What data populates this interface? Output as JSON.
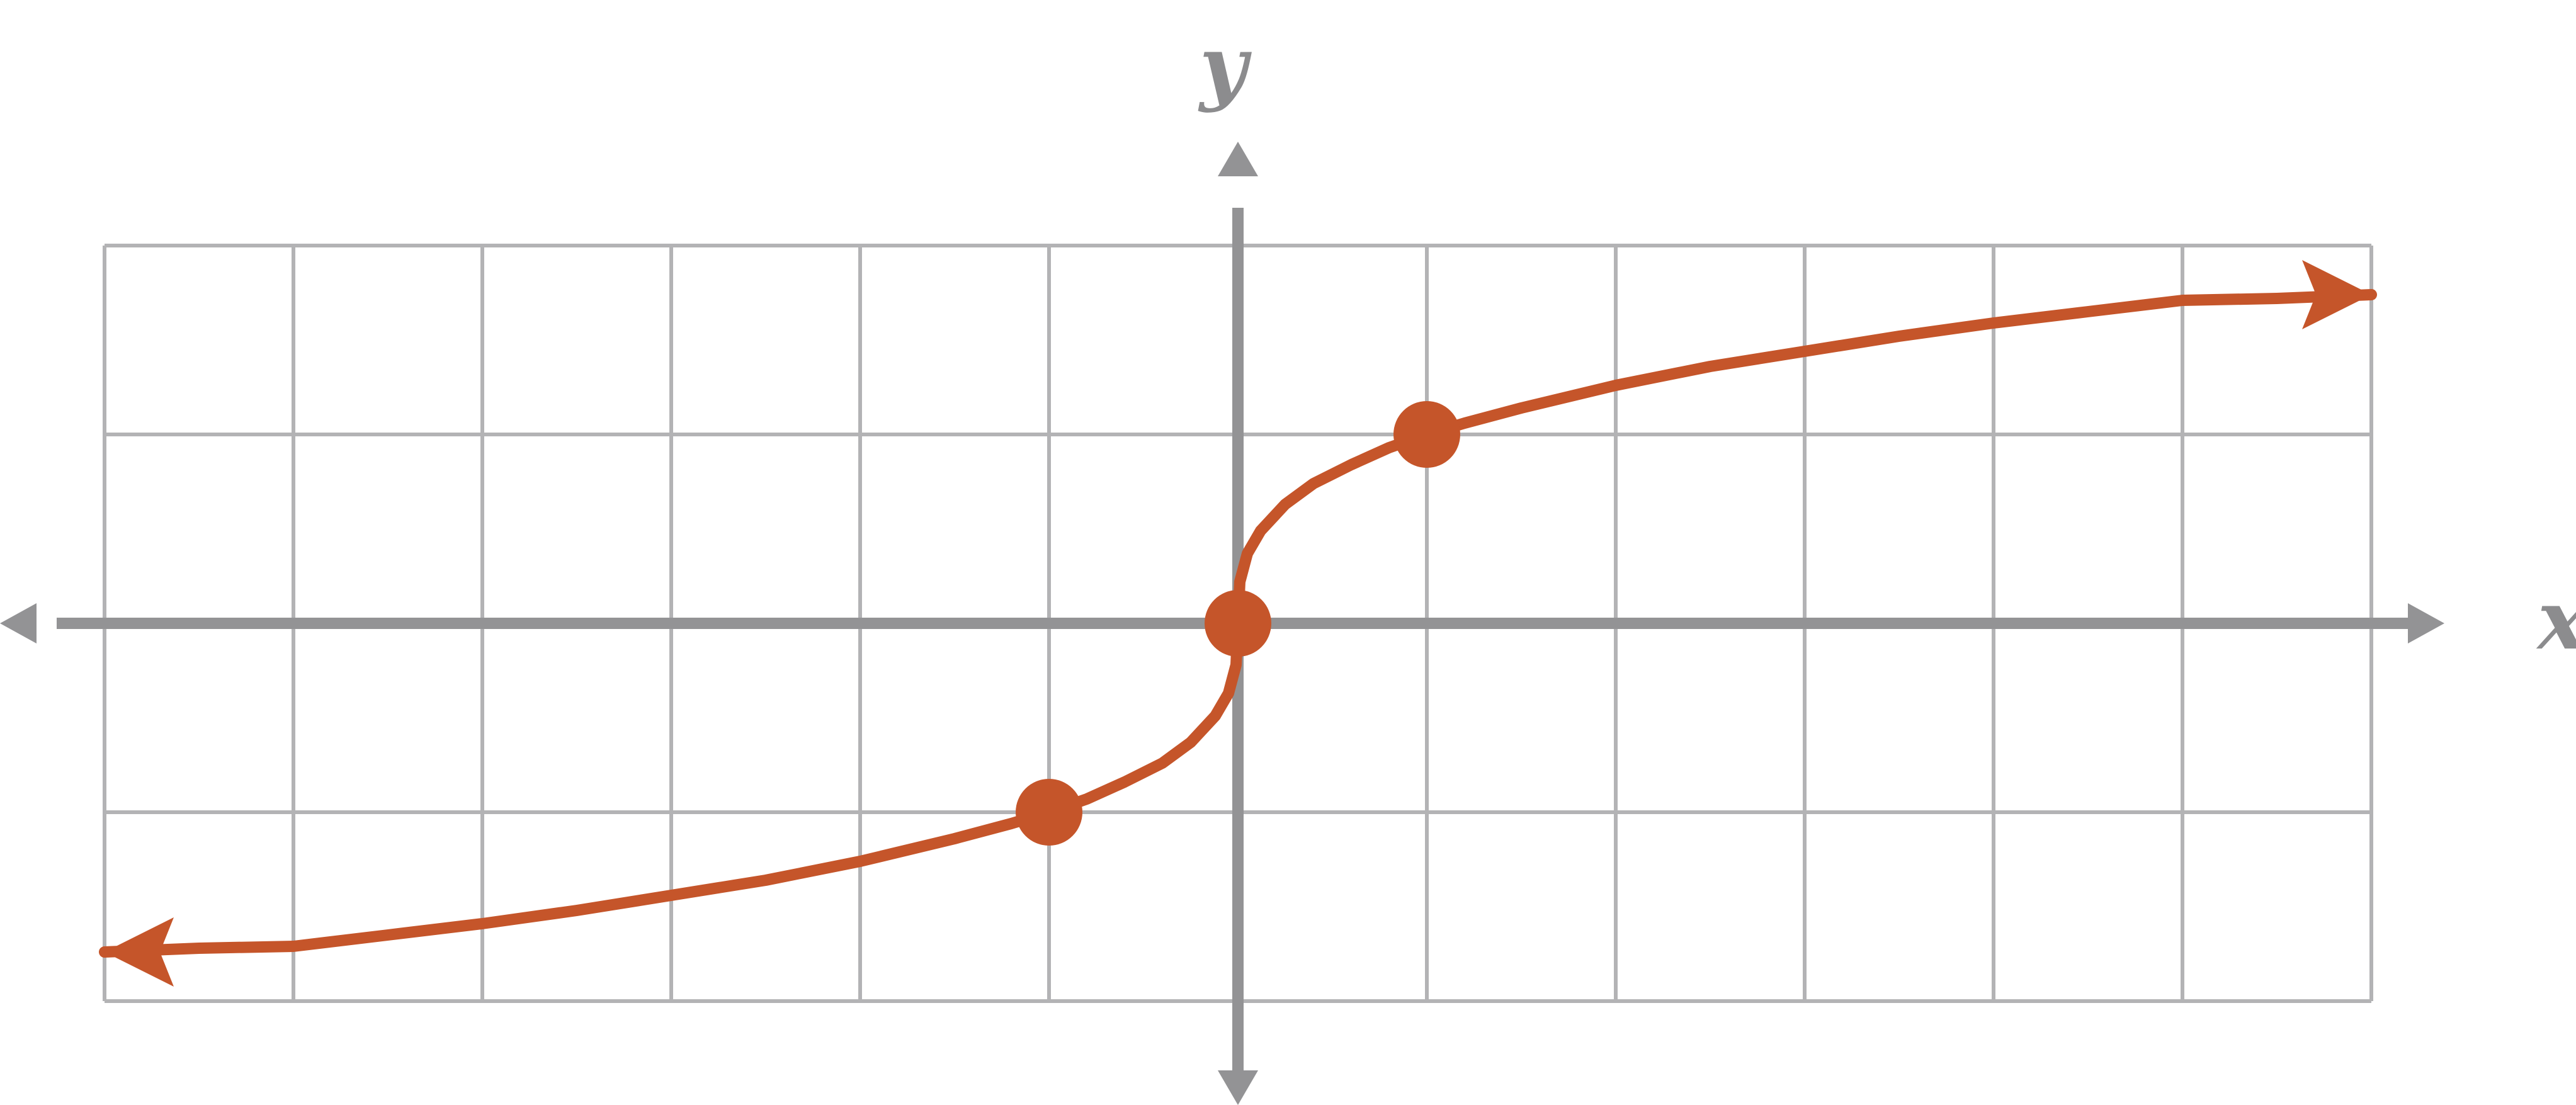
{
  "chart_data": {
    "type": "line",
    "title": "",
    "xlabel": "x",
    "ylabel": "y",
    "xlim": [
      -6,
      6
    ],
    "ylim": [
      -2,
      2
    ],
    "grid": true,
    "series": [
      {
        "function": "cbrt(x)",
        "x": [
          -6.0,
          -5.5,
          -5.0,
          -4.5,
          -4.0,
          -3.5,
          -3.0,
          -2.5,
          -2.0,
          -1.5,
          -1.2,
          -1.0,
          -0.8,
          -0.6,
          -0.4,
          -0.25,
          -0.12,
          -0.05,
          -0.01,
          0.0,
          0.01,
          0.05,
          0.12,
          0.25,
          0.4,
          0.6,
          0.8,
          1.0,
          1.2,
          1.5,
          2.0,
          2.5,
          3.0,
          3.5,
          4.0,
          4.5,
          5.0,
          5.5,
          6.0
        ],
        "y": [
          -1.74,
          -1.72,
          -1.71,
          -1.65,
          -1.59,
          -1.52,
          -1.44,
          -1.36,
          -1.26,
          -1.14,
          -1.06,
          -1.0,
          -0.93,
          -0.84,
          -0.74,
          -0.63,
          -0.49,
          -0.37,
          -0.22,
          0.0,
          0.22,
          0.37,
          0.49,
          0.63,
          0.74,
          0.84,
          0.93,
          1.0,
          1.06,
          1.14,
          1.26,
          1.36,
          1.44,
          1.52,
          1.59,
          1.65,
          1.71,
          1.72,
          1.74
        ]
      }
    ],
    "points": [
      {
        "x": -1,
        "y": -1
      },
      {
        "x": 0,
        "y": 0
      },
      {
        "x": 1,
        "y": 1
      }
    ],
    "colors": {
      "curve": "#c5552a",
      "axis": "#939395",
      "grid": "#b3b3b5",
      "label": "#8c8c8e"
    }
  }
}
